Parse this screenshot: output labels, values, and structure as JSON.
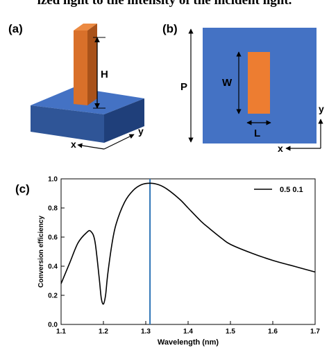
{
  "caption_fragment": "ized light to the intensity of the incident light.",
  "panel_a": {
    "label": "(a)",
    "height_label": "H",
    "x_axis_label": "x",
    "y_axis_label": "y",
    "colors": {
      "pillar_front": "#d9702a",
      "pillar_side": "#a9521a",
      "pillar_top": "#ec8a42",
      "base_top": "#4472c4",
      "base_front": "#2f5597",
      "base_side": "#1f3f7a"
    }
  },
  "panel_b": {
    "label": "(b)",
    "period_label": "P",
    "width_label": "W",
    "length_label": "L",
    "x_axis_label": "x",
    "y_axis_label": "y",
    "colors": {
      "cell": "#4472c4",
      "pillar": "#ed7d31"
    }
  },
  "panel_c": {
    "label": "(c)",
    "chart_data": {
      "type": "line",
      "xlabel": "Wavelength (nm)",
      "ylabel": "Conversion efficiency",
      "xlim": [
        1.1,
        1.7
      ],
      "ylim": [
        0.0,
        1.0
      ],
      "x_ticks": [
        "1.1",
        "1.2",
        "1.3",
        "1.4",
        "1.5",
        "1.6",
        "1.7"
      ],
      "y_ticks": [
        "0.0",
        "0.2",
        "0.4",
        "0.6",
        "0.8",
        "1.0"
      ],
      "grid": false,
      "legend_position": "top-right",
      "series": [
        {
          "name": "0.5 0.1",
          "color": "#000000",
          "x": [
            1.1,
            1.12,
            1.14,
            1.16,
            1.17,
            1.18,
            1.19,
            1.195,
            1.2,
            1.205,
            1.21,
            1.22,
            1.23,
            1.25,
            1.27,
            1.29,
            1.31,
            1.33,
            1.35,
            1.38,
            1.4,
            1.43,
            1.45,
            1.48,
            1.5,
            1.55,
            1.6,
            1.65,
            1.7
          ],
          "y": [
            0.28,
            0.42,
            0.56,
            0.63,
            0.64,
            0.57,
            0.32,
            0.18,
            0.14,
            0.2,
            0.34,
            0.55,
            0.69,
            0.84,
            0.92,
            0.96,
            0.97,
            0.96,
            0.93,
            0.86,
            0.8,
            0.71,
            0.66,
            0.59,
            0.55,
            0.49,
            0.44,
            0.4,
            0.36
          ]
        }
      ],
      "marker_line": {
        "x": 1.31,
        "color": "#2e75b6"
      }
    }
  }
}
